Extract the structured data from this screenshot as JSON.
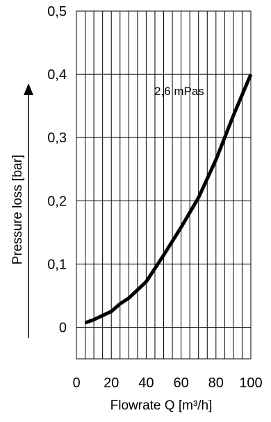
{
  "chart_data": {
    "type": "line",
    "title": "",
    "xlabel": "Flowrate  Q [m³/h]",
    "ylabel": "Pressure loss [bar]",
    "xlim": [
      0,
      100
    ],
    "ylim": [
      -0.05,
      0.5
    ],
    "grid": true,
    "x_ticks": [
      0,
      20,
      40,
      60,
      80,
      100
    ],
    "x_tick_labels": [
      "0",
      "20",
      "40",
      "60",
      "80",
      "100"
    ],
    "y_ticks": [
      0,
      0.1,
      0.2,
      0.3,
      0.4,
      0.5
    ],
    "y_tick_labels": [
      "0",
      "0,1",
      "0,2",
      "0,3",
      "0,4",
      "0,5"
    ],
    "series": [
      {
        "x": [
          5,
          10,
          20,
          25,
          30,
          40,
          50,
          60,
          70,
          80,
          90,
          100
        ],
        "y": [
          0.007,
          0.012,
          0.025,
          0.037,
          0.046,
          0.072,
          0.114,
          0.158,
          0.205,
          0.265,
          0.335,
          0.4
        ]
      }
    ],
    "annotation": {
      "text": "2,6 mPas"
    }
  }
}
